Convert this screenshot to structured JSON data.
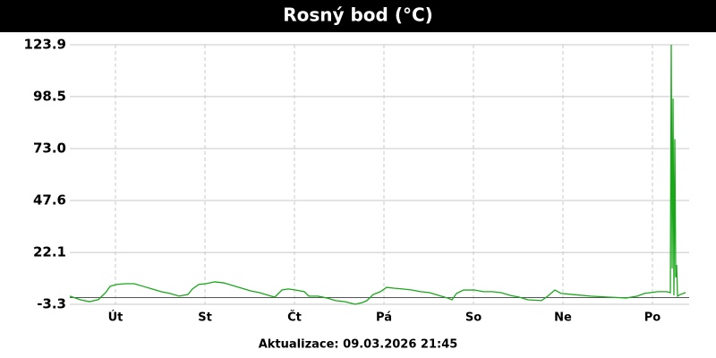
{
  "chart_data": {
    "type": "line",
    "title": "Rosný bod (°C)",
    "footer": "Aktualizace: 09.03.2026 21:45",
    "xlim": [
      0.49,
      7.41
    ],
    "xticks": [
      {
        "value": 1,
        "label": "Út"
      },
      {
        "value": 2,
        "label": "St"
      },
      {
        "value": 3,
        "label": "Čt"
      },
      {
        "value": 4,
        "label": "Pá"
      },
      {
        "value": 5,
        "label": "So"
      },
      {
        "value": 6,
        "label": "Ne"
      },
      {
        "value": 7,
        "label": "Po"
      }
    ],
    "ylim": [
      -3.3,
      123.9
    ],
    "yticks": [
      -3.3,
      22.1,
      47.6,
      {
        "value": 73,
        "label": "73.0"
      },
      98.5,
      123.9
    ],
    "grid": true,
    "series": [
      {
        "name": "Rosný bod",
        "color": "#1aa81a",
        "x": [
          0.49,
          0.61,
          0.71,
          0.81,
          0.89,
          0.94,
          1.01,
          1.11,
          1.21,
          1.31,
          1.41,
          1.51,
          1.61,
          1.71,
          1.81,
          1.86,
          1.93,
          2.01,
          2.11,
          2.21,
          2.31,
          2.41,
          2.51,
          2.61,
          2.71,
          2.78,
          2.86,
          2.93,
          3.01,
          3.11,
          3.16,
          3.26,
          3.36,
          3.46,
          3.56,
          3.68,
          3.76,
          3.81,
          3.88,
          3.96,
          4.03,
          4.11,
          4.21,
          4.31,
          4.41,
          4.51,
          4.61,
          4.71,
          4.76,
          4.81,
          4.89,
          5.01,
          5.11,
          5.21,
          5.31,
          5.41,
          5.51,
          5.61,
          5.76,
          5.83,
          5.91,
          5.98,
          6.11,
          6.31,
          6.51,
          6.71,
          6.83,
          6.91,
          7.06,
          7.16,
          7.2,
          7.21,
          7.22,
          7.23,
          7.24,
          7.25,
          7.26,
          7.27,
          7.28,
          7.31,
          7.37
        ],
        "values": [
          0.7,
          -1.1,
          -2,
          -1,
          2.4,
          5.5,
          6.4,
          6.8,
          6.8,
          5.5,
          4.2,
          2.9,
          2,
          0.7,
          1.5,
          4.2,
          6.4,
          6.8,
          7.7,
          7.2,
          5.9,
          4.6,
          3.3,
          2.4,
          1.1,
          0.2,
          3.7,
          4.2,
          3.7,
          2.9,
          0.7,
          0.7,
          -0.2,
          -1.5,
          -2,
          -3.3,
          -2.4,
          -1.5,
          1.5,
          2.9,
          5,
          4.6,
          4.2,
          3.7,
          2.9,
          2.4,
          1.1,
          -0.2,
          -1.1,
          2,
          3.7,
          3.7,
          2.9,
          2.9,
          2.4,
          1.1,
          0.2,
          -1.1,
          -1.5,
          0.7,
          3.7,
          2,
          1.5,
          0.7,
          0.2,
          -0.2,
          0.7,
          2,
          2.9,
          2.9,
          2.4,
          123.9,
          14.3,
          97.5,
          1.1,
          77.6,
          9.9,
          16,
          0.7,
          1.5,
          2.4
        ]
      }
    ]
  }
}
